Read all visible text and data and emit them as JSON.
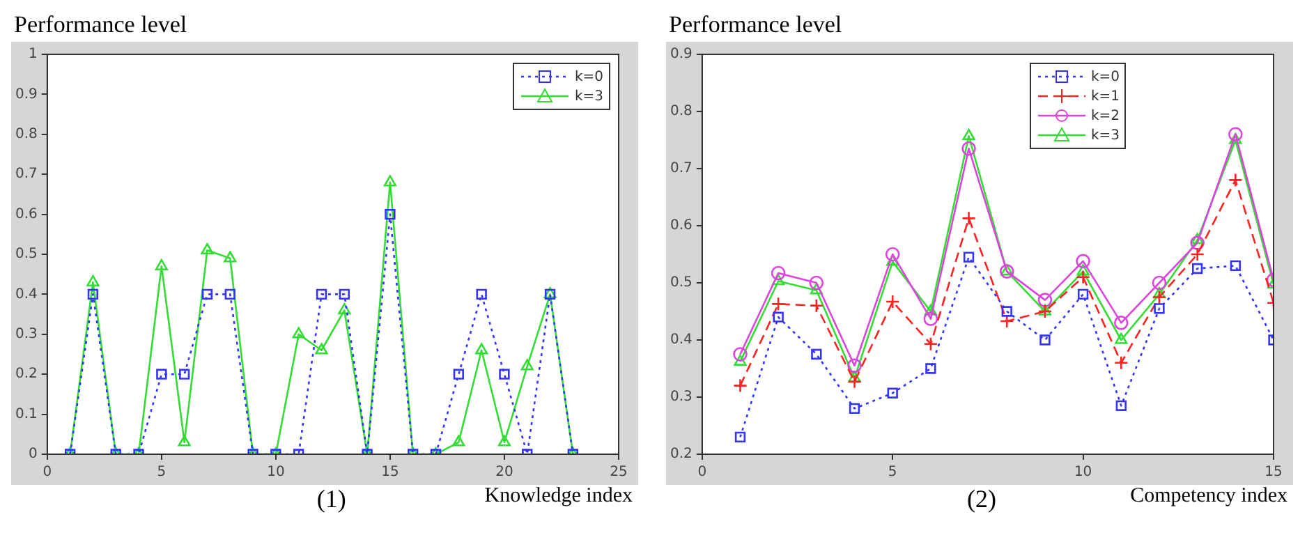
{
  "chart_data": [
    {
      "type": "line",
      "ylabel": "Performance level",
      "xlabel": "Knowledge index",
      "annotations": [
        "(1)"
      ],
      "x": [
        1,
        2,
        3,
        4,
        5,
        6,
        7,
        8,
        9,
        10,
        11,
        12,
        13,
        14,
        15,
        16,
        17,
        18,
        19,
        20,
        21,
        22,
        23
      ],
      "xlim": [
        0,
        25
      ],
      "xticks": [
        0,
        5,
        10,
        15,
        20,
        25
      ],
      "ylim": [
        0,
        1
      ],
      "yticks": [
        0,
        0.1,
        0.2,
        0.3,
        0.4,
        0.5,
        0.6,
        0.7,
        0.8,
        0.9,
        1
      ],
      "legend": "top right",
      "series": [
        {
          "name": "k=0",
          "color": "#3333ff",
          "marker": "square",
          "line_style": "dotted",
          "values": [
            0,
            0.4,
            0,
            0,
            0.2,
            0.2,
            0.4,
            0.4,
            0,
            0,
            0,
            0.4,
            0.4,
            0,
            0.6,
            0,
            0,
            0.2,
            0.4,
            0.2,
            0,
            0.4,
            0
          ]
        },
        {
          "name": "k=3",
          "color": "#33dd33",
          "marker": "triangle",
          "line_style": "solid",
          "values": [
            0,
            0.43,
            0,
            0,
            0.47,
            0.03,
            0.51,
            0.49,
            0,
            0,
            0.3,
            0.26,
            0.36,
            0,
            0.68,
            0,
            0,
            0.03,
            0.26,
            0.03,
            0.22,
            0.4,
            0
          ]
        }
      ]
    },
    {
      "type": "line",
      "ylabel": "Performance level",
      "xlabel": "Competency index",
      "annotations": [
        "(2)"
      ],
      "x": [
        1,
        2,
        3,
        4,
        5,
        6,
        7,
        8,
        9,
        10,
        11,
        12,
        13,
        14,
        15
      ],
      "xlim": [
        0,
        15
      ],
      "xticks": [
        0,
        5,
        10,
        15
      ],
      "ylim": [
        0.2,
        0.9
      ],
      "yticks": [
        0.2,
        0.3,
        0.4,
        0.5,
        0.6,
        0.7,
        0.8,
        0.9
      ],
      "legend": "top",
      "series": [
        {
          "name": "k=0",
          "color": "#3333ff",
          "marker": "square",
          "line_style": "dotted",
          "values": [
            0.23,
            0.44,
            0.375,
            0.28,
            0.307,
            0.35,
            0.545,
            0.45,
            0.4,
            0.48,
            0.285,
            0.455,
            0.525,
            0.53,
            0.4
          ]
        },
        {
          "name": "k=1",
          "color": "#ff2222",
          "marker": "cross",
          "line_style": "dashed",
          "values": [
            0.32,
            0.463,
            0.46,
            0.327,
            0.467,
            0.393,
            0.613,
            0.433,
            0.45,
            0.51,
            0.36,
            0.475,
            0.55,
            0.68,
            0.465
          ]
        },
        {
          "name": "k=2",
          "color": "#dd44dd",
          "marker": "circle",
          "line_style": "solid",
          "values": [
            0.375,
            0.517,
            0.5,
            0.355,
            0.55,
            0.437,
            0.735,
            0.52,
            0.47,
            0.538,
            0.43,
            0.5,
            0.57,
            0.76,
            0.505
          ]
        },
        {
          "name": "k=3",
          "color": "#33dd33",
          "marker": "triangle",
          "line_style": "solid",
          "values": [
            0.362,
            0.503,
            0.487,
            0.333,
            0.537,
            0.45,
            0.757,
            0.52,
            0.45,
            0.52,
            0.4,
            0.48,
            0.575,
            0.75,
            0.497
          ]
        }
      ]
    }
  ]
}
